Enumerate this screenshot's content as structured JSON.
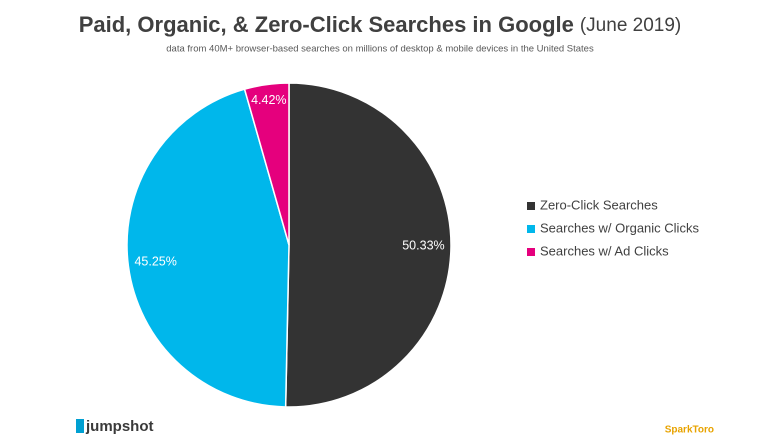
{
  "chart_data": {
    "type": "pie",
    "title": "Paid, Organic, & Zero-Click Searches in Google",
    "title_date": "(June 2019)",
    "subtitle": "data from 40M+ browser-based searches on millions of desktop & mobile devices in the United States",
    "series": [
      {
        "name": "Zero-Click Searches",
        "color": "#333333"
      },
      {
        "name": "Searches w/ Organic Clicks",
        "color": "#00b7eb"
      },
      {
        "name": "Searches w/ Ad Clicks",
        "color": "#e5007d"
      }
    ],
    "values": [
      50.33,
      45.25,
      4.42
    ],
    "value_labels": [
      "50.33%",
      "45.25%",
      "4.42%"
    ],
    "legend": "right"
  },
  "footer": {
    "left_logo": "jumpshot",
    "right_logo": "SparkToro"
  }
}
